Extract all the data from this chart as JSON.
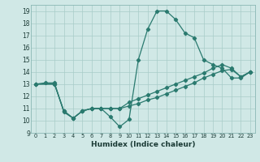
{
  "xlabel": "Humidex (Indice chaleur)",
  "xlim": [
    -0.5,
    23.5
  ],
  "ylim": [
    9,
    19.5
  ],
  "xticks": [
    0,
    1,
    2,
    3,
    4,
    5,
    6,
    7,
    8,
    9,
    10,
    11,
    12,
    13,
    14,
    15,
    16,
    17,
    18,
    19,
    20,
    21,
    22,
    23
  ],
  "yticks": [
    9,
    10,
    11,
    12,
    13,
    14,
    15,
    16,
    17,
    18,
    19
  ],
  "bg_color": "#d0e8e6",
  "line_color": "#2a7a6f",
  "line1_x": [
    0,
    1,
    2,
    3,
    4,
    5,
    6,
    7,
    8,
    9,
    10,
    11,
    12,
    13,
    14,
    15,
    16,
    17,
    18,
    19,
    20,
    21,
    22,
    23
  ],
  "line1_y": [
    13.0,
    13.1,
    13.1,
    10.7,
    10.2,
    10.8,
    11.0,
    11.0,
    10.3,
    9.5,
    10.1,
    15.0,
    17.5,
    19.0,
    19.0,
    18.3,
    17.2,
    16.8,
    15.0,
    14.6,
    14.3,
    13.5,
    13.5,
    14.0
  ],
  "line2_x": [
    0,
    2,
    3,
    4,
    5,
    6,
    7,
    8,
    9,
    10,
    11,
    12,
    13,
    14,
    15,
    16,
    17,
    18,
    19,
    20,
    21,
    22,
    23
  ],
  "line2_y": [
    13.0,
    13.0,
    10.8,
    10.2,
    10.8,
    11.0,
    11.0,
    11.0,
    11.0,
    11.2,
    11.4,
    11.7,
    11.9,
    12.2,
    12.5,
    12.8,
    13.1,
    13.5,
    13.8,
    14.1,
    14.2,
    13.6,
    14.0
  ],
  "line3_x": [
    0,
    2,
    3,
    4,
    5,
    6,
    7,
    8,
    9,
    10,
    11,
    12,
    13,
    14,
    15,
    16,
    17,
    18,
    19,
    20,
    21,
    22,
    23
  ],
  "line3_y": [
    13.0,
    13.0,
    10.8,
    10.2,
    10.8,
    11.0,
    11.0,
    11.0,
    11.0,
    11.5,
    11.8,
    12.1,
    12.4,
    12.7,
    13.0,
    13.3,
    13.6,
    13.9,
    14.3,
    14.6,
    14.3,
    13.6,
    14.0
  ]
}
